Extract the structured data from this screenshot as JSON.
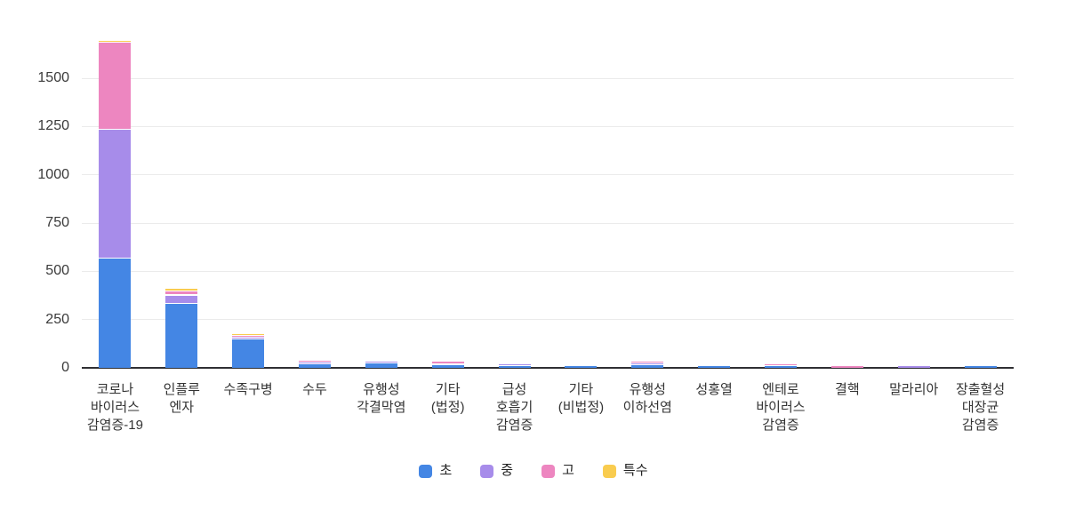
{
  "chart_data": {
    "type": "bar",
    "stacked": true,
    "title": "",
    "xlabel": "",
    "ylabel": "",
    "grid": true,
    "legend_position": "bottom",
    "ylim": [
      0,
      1750
    ],
    "yticks": [
      0,
      250,
      500,
      750,
      1000,
      1250,
      1500
    ],
    "categories": [
      "코로나\n바이러스\n감염증-19",
      "인플루\n엔자",
      "수족구병",
      "수두",
      "유행성\n각결막염",
      "기타\n(법정)",
      "급성\n호흡기\n감염증",
      "기타\n(비법정)",
      "유행성\n이하선염",
      "성홍열",
      "엔테로\n바이러스\n감염증",
      "결핵",
      "말라리아",
      "장출혈성\n대장균\n감염증"
    ],
    "series": [
      {
        "name": "초",
        "color": "#4486e4",
        "values": [
          565,
          330,
          145,
          17,
          24,
          12,
          9,
          8,
          12,
          8,
          10,
          0,
          0,
          9
        ]
      },
      {
        "name": "중",
        "color": "#a78cea",
        "values": [
          670,
          45,
          12,
          9,
          8,
          8,
          9,
          0,
          9,
          0,
          0,
          0,
          8,
          0
        ]
      },
      {
        "name": "고",
        "color": "#ed86c0",
        "values": [
          450,
          22,
          8,
          12,
          0,
          12,
          0,
          0,
          11,
          0,
          8,
          9,
          0,
          0
        ]
      },
      {
        "name": "특수",
        "color": "#f9cc4f",
        "values": [
          10,
          13,
          8,
          0,
          0,
          0,
          0,
          0,
          0,
          0,
          0,
          0,
          0,
          0
        ]
      }
    ],
    "colors": {
      "grid": "#ebebeb",
      "axis": "#2f2f33",
      "tick_text": "#3a3a3a",
      "category_text": "#333333",
      "legend_text": "#222222"
    }
  }
}
